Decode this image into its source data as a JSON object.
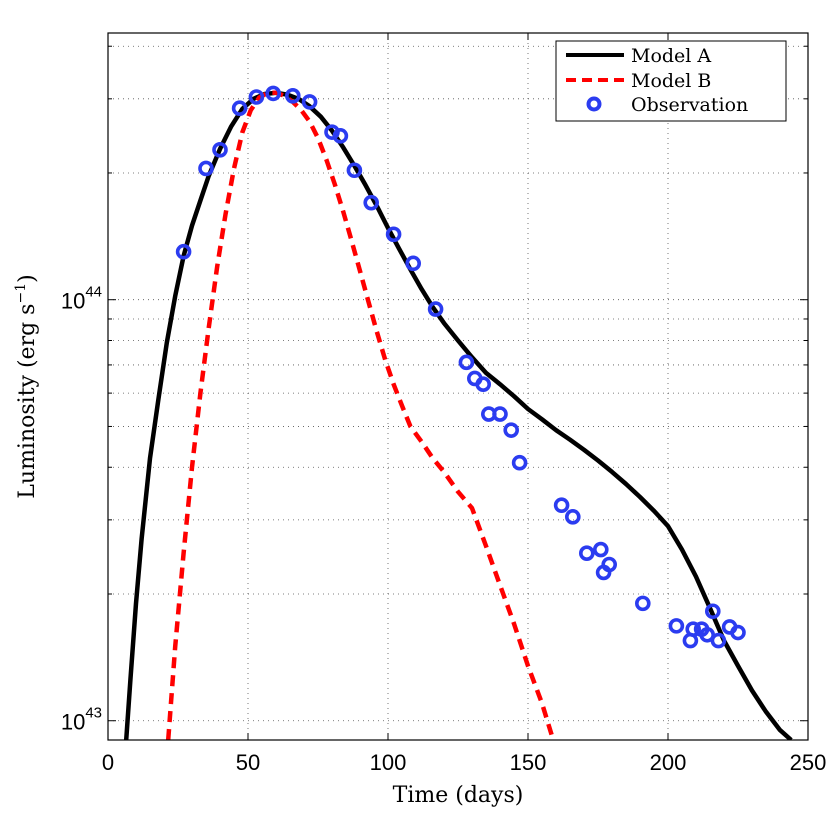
{
  "chart_data": {
    "type": "line",
    "title": "",
    "xlabel": "Time (days)",
    "ylabel_main": "Luminosity (erg s",
    "ylabel_exp": "−1",
    "ylabel_close": ")",
    "yscale": "log",
    "xlim": [
      0,
      250
    ],
    "ylim": [
      9e+42,
      4.3e+44
    ],
    "grid": true,
    "legend_position": "top-right",
    "x_ticks": [
      0,
      50,
      100,
      150,
      200,
      250
    ],
    "x_tick_labels": [
      "0",
      "50",
      "100",
      "150",
      "200",
      "250"
    ],
    "y_major_ticks": [
      1e+43,
      1e+44
    ],
    "y_tick_labels": [
      {
        "base": "10",
        "exp": "43"
      },
      {
        "base": "10",
        "exp": "44"
      }
    ],
    "series": [
      {
        "name": "Model A",
        "style": "solid",
        "color": "#000000",
        "x": [
          6.5,
          8,
          10,
          12,
          15,
          18,
          21,
          24,
          27,
          30,
          33,
          36,
          40,
          44,
          48,
          52,
          56,
          60,
          64,
          68,
          72,
          76,
          80,
          84,
          88,
          92,
          96,
          100,
          104,
          108,
          112,
          116,
          120,
          125,
          130,
          135,
          140,
          145,
          150,
          155,
          160,
          165,
          170,
          175,
          180,
          185,
          190,
          195,
          200,
          205,
          210,
          215,
          220,
          225,
          230,
          235,
          240,
          244
        ],
        "y": [
          9e+42,
          1.25e+43,
          1.9e+43,
          2.7e+43,
          4.2e+43,
          5.8e+43,
          7.9e+43,
          1.02e+44,
          1.27e+44,
          1.5e+44,
          1.72e+44,
          1.97e+44,
          2.28e+44,
          2.58e+44,
          2.84e+44,
          3e+44,
          3.08e+44,
          3.1e+44,
          3.07e+44,
          3e+44,
          2.88e+44,
          2.72e+44,
          2.52e+44,
          2.3e+44,
          2.08e+44,
          1.87e+44,
          1.67e+44,
          1.48e+44,
          1.32e+44,
          1.18e+44,
          1.06e+44,
          9.6e+43,
          8.8e+43,
          8e+43,
          7.3e+43,
          6.7e+43,
          6.3e+43,
          5.9e+43,
          5.5e+43,
          5.2e+43,
          4.9e+43,
          4.65e+43,
          4.4e+43,
          4.15e+43,
          3.9e+43,
          3.65e+43,
          3.4e+43,
          3.15e+43,
          2.9e+43,
          2.55e+43,
          2.2e+43,
          1.85e+43,
          1.55e+43,
          1.35e+43,
          1.18e+43,
          1.05e+43,
          9.5e+42,
          9e+42
        ]
      },
      {
        "name": "Model B",
        "style": "dashed",
        "color": "#ff0000",
        "x": [
          21.5,
          24,
          27,
          30,
          33,
          36,
          39,
          42,
          45,
          48,
          51,
          54,
          57,
          60,
          63,
          66,
          69,
          72,
          75,
          78,
          81,
          84,
          87,
          90,
          93,
          96,
          99,
          102,
          105,
          108,
          112,
          116,
          120,
          125,
          130,
          135,
          140,
          145,
          150,
          155,
          159
        ],
        "y": [
          9e+42,
          1.5e+43,
          2.5e+43,
          4e+43,
          6e+43,
          8.6e+43,
          1.2e+44,
          1.6e+44,
          2.05e+44,
          2.5e+44,
          2.82e+44,
          3.02e+44,
          3.1e+44,
          3.1e+44,
          3.05e+44,
          2.95e+44,
          2.82e+44,
          2.65e+44,
          2.42e+44,
          2.15e+44,
          1.88e+44,
          1.62e+44,
          1.38e+44,
          1.17e+44,
          9.9e+43,
          8.4e+43,
          7.2e+43,
          6.3e+43,
          5.6e+43,
          5e+43,
          4.6e+43,
          4.2e+43,
          3.9e+43,
          3.5e+43,
          3.2e+43,
          2.6e+43,
          2.1e+43,
          1.7e+43,
          1.35e+43,
          1.1e+43,
          9e+42
        ]
      }
    ],
    "observations": {
      "name": "Observation",
      "color": "#2b3cf0",
      "x": [
        27,
        35,
        40,
        47,
        53,
        59,
        66,
        72,
        80,
        83,
        88,
        94,
        102,
        109,
        117,
        128,
        131,
        134,
        136,
        140,
        144,
        147,
        162,
        166,
        171,
        176,
        177,
        179,
        191,
        203,
        208,
        209,
        212,
        214,
        216,
        218,
        222,
        225
      ],
      "y": [
        1.3e+44,
        2.05e+44,
        2.27e+44,
        2.85e+44,
        3.03e+44,
        3.09e+44,
        3.05e+44,
        2.95e+44,
        2.5e+44,
        2.45e+44,
        2.03e+44,
        1.7e+44,
        1.43e+44,
        1.22e+44,
        9.5e+43,
        7.1e+43,
        6.5e+43,
        6.3e+43,
        5.35e+43,
        5.35e+43,
        4.9e+43,
        4.1e+43,
        3.25e+43,
        3.05e+43,
        2.5e+43,
        2.55e+43,
        2.25e+43,
        2.35e+43,
        1.9e+43,
        1.68e+43,
        1.55e+43,
        1.65e+43,
        1.65e+43,
        1.6e+43,
        1.82e+43,
        1.55e+43,
        1.67e+43,
        1.62e+43
      ]
    },
    "legend": [
      {
        "label": "Model A",
        "style": "solid",
        "color": "#000000"
      },
      {
        "label": "Model B",
        "style": "dashed",
        "color": "#ff0000"
      },
      {
        "label": "Observation",
        "style": "marker",
        "color": "#2b3cf0"
      }
    ]
  }
}
